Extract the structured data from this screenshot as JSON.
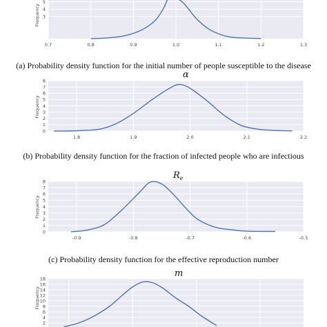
{
  "colors": {
    "panel_bg": "#eaeaf2",
    "grid": "#ffffff",
    "line": "#4c72b0"
  },
  "chart_data": [
    {
      "type": "line",
      "title": "",
      "caption": "(a) Probability density function for the initial number of people susceptible to the disease",
      "ylabel": "Frequency",
      "xlim": [
        0.7,
        1.3
      ],
      "ylim": [
        0,
        6
      ],
      "xticks": [
        "0.7",
        "0.8",
        "0.9",
        "1.0",
        "1.1",
        "1.2",
        "1.3"
      ],
      "yticks": [
        "3",
        "4",
        "5"
      ],
      "grid": true,
      "x": [
        0.8,
        0.84,
        0.88,
        0.92,
        0.95,
        0.97,
        0.985,
        1.0,
        1.015,
        1.03,
        1.05,
        1.08,
        1.12,
        1.16,
        1.2
      ],
      "y": [
        0.0,
        0.1,
        0.4,
        1.2,
        2.4,
        4.0,
        5.8,
        5.5,
        5.0,
        4.0,
        2.6,
        1.2,
        0.3,
        0.08,
        0.02
      ]
    },
    {
      "type": "line",
      "title": "α",
      "caption": "(b) Probability density function for the fraction of infected people who are infectious",
      "ylabel": "Frequency",
      "xlim": [
        1.75,
        2.2
      ],
      "ylim": [
        0,
        8
      ],
      "xticks": [
        "1.8",
        "1.9",
        "2.0",
        "2.1",
        "2.2"
      ],
      "yticks": [
        "0",
        "1",
        "2",
        "3",
        "4",
        "5",
        "6",
        "7",
        "8"
      ],
      "grid": true,
      "x": [
        1.76,
        1.8,
        1.84,
        1.87,
        1.9,
        1.93,
        1.96,
        1.98,
        2.0,
        2.03,
        2.06,
        2.09,
        2.12,
        2.15,
        2.18
      ],
      "y": [
        0.0,
        0.05,
        0.3,
        1.2,
        2.8,
        4.8,
        6.6,
        7.4,
        6.8,
        4.8,
        2.5,
        0.9,
        0.3,
        0.1,
        0.02
      ]
    },
    {
      "type": "line",
      "title": "R",
      "title_subscript": "e",
      "caption": "(c) Probability density function for the effective reproduction number",
      "ylabel": "Frequency",
      "xlim": [
        -0.95,
        -0.5
      ],
      "ylim": [
        0,
        8
      ],
      "xticks": [
        "-0.9",
        "-0.8",
        "-0.7",
        "-0.6",
        "-0.5"
      ],
      "yticks": [
        "0",
        "1",
        "2",
        "3",
        "4",
        "5",
        "6",
        "7",
        "8"
      ],
      "grid": true,
      "x": [
        -0.91,
        -0.88,
        -0.85,
        -0.82,
        -0.79,
        -0.77,
        -0.75,
        -0.73,
        -0.71,
        -0.69,
        -0.67,
        -0.65,
        -0.63,
        -0.6,
        -0.55
      ],
      "y": [
        0.0,
        0.3,
        1.2,
        3.5,
        6.2,
        7.9,
        7.6,
        6.0,
        4.0,
        2.2,
        1.2,
        0.6,
        0.35,
        0.1,
        0.05
      ]
    },
    {
      "type": "line",
      "title": "m",
      "caption": "",
      "ylabel": "Frequency",
      "xlim": [
        0,
        1
      ],
      "ylim": [
        0,
        18
      ],
      "xticks": [],
      "yticks": [
        "2",
        "4",
        "6",
        "8",
        "10",
        "12",
        "14",
        "16",
        "18"
      ],
      "grid": true,
      "x": [
        0.06,
        0.12,
        0.18,
        0.24,
        0.29,
        0.33,
        0.37,
        0.41,
        0.45,
        0.5,
        0.55,
        0.6,
        0.66
      ],
      "y": [
        0.5,
        2.0,
        4.5,
        8.0,
        12.0,
        15.0,
        16.8,
        16.5,
        14.5,
        11.0,
        8.0,
        4.5,
        1.0
      ]
    }
  ]
}
